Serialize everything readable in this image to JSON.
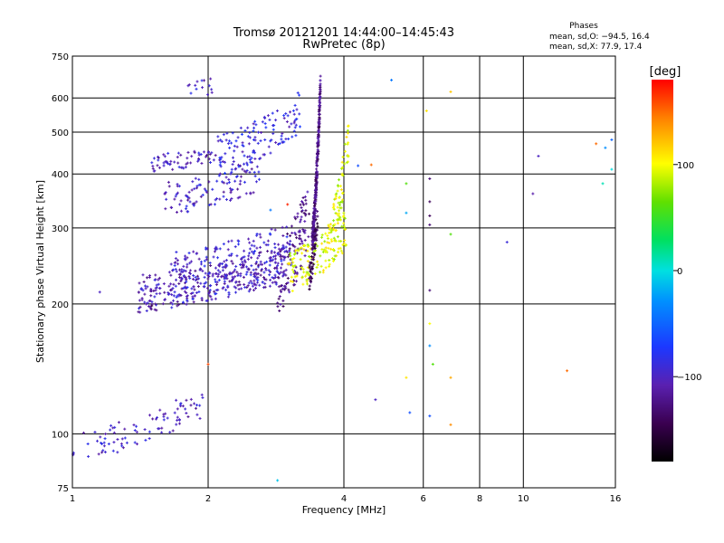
{
  "chart_data": {
    "type": "scatter",
    "title": "Tromsø 20121201 14:44:00–14:45:43",
    "subtitle": "RwPretec (8p)",
    "stats": {
      "heading": "Phases",
      "line_o": "mean, sd,O: −94.5, 16.4",
      "line_x": "mean, sd,X:  77.9, 17.4"
    },
    "xlabel": "Frequency [MHz]",
    "ylabel": "Stationary phase Virtual Height [km]",
    "x_scale": "log",
    "y_scale": "log",
    "xlim": [
      1,
      16
    ],
    "ylim": [
      75,
      750
    ],
    "xticks": [
      1,
      2,
      4,
      6,
      8,
      10,
      16
    ],
    "xtick_labels": [
      "1",
      "2",
      "4",
      "6",
      "8",
      "10",
      "16"
    ],
    "yticks": [
      75,
      100,
      200,
      300,
      400,
      500,
      600,
      750
    ],
    "ytick_labels": [
      "75",
      "100",
      "200",
      "300",
      "400",
      "500",
      "600",
      "750"
    ],
    "grid": true,
    "colorbar": {
      "label": "[deg]",
      "range": [
        -180,
        180
      ],
      "ticks": [
        100,
        0,
        -100
      ],
      "tick_labels": [
        "100",
        "0",
        "−100"
      ]
    },
    "traces": [
      {
        "x0": 1.0,
        "x1": 1.95,
        "h0": 93,
        "h1": 118,
        "phase": -100,
        "count": 90,
        "spread": 0.035
      },
      {
        "x0": 1.4,
        "x1": 3.0,
        "h0": 212,
        "h1": 250,
        "phase": -105,
        "count": 320,
        "spread": 0.045
      },
      {
        "x0": 1.65,
        "x1": 3.05,
        "h0": 230,
        "h1": 270,
        "phase": -95,
        "count": 200,
        "spread": 0.06
      },
      {
        "x0": 2.85,
        "x1": 3.35,
        "h0": 230,
        "h1": 320,
        "phase": -120,
        "count": 120,
        "spread": 0.08
      },
      {
        "x0": 3.0,
        "x1": 4.05,
        "h0": 235,
        "h1": 300,
        "phase": 95,
        "count": 160,
        "spread": 0.05
      },
      {
        "x0": 3.75,
        "x1": 4.1,
        "h0": 300,
        "h1": 480,
        "phase": 95,
        "count": 60,
        "spread": 0.05
      },
      {
        "x0": 3.4,
        "x1": 3.55,
        "h0": 280,
        "h1": 650,
        "phase": -125,
        "count": 300,
        "spread": 0.03
      },
      {
        "x0": 3.35,
        "x1": 3.5,
        "h0": 230,
        "h1": 320,
        "phase": -140,
        "count": 60,
        "spread": 0.03
      },
      {
        "x0": 1.6,
        "x1": 2.6,
        "h0": 350,
        "h1": 400,
        "phase": -100,
        "count": 110,
        "spread": 0.04
      },
      {
        "x0": 1.5,
        "x1": 2.1,
        "h0": 425,
        "h1": 440,
        "phase": -100,
        "count": 60,
        "spread": 0.02
      },
      {
        "x0": 2.1,
        "x1": 3.2,
        "h0": 440,
        "h1": 560,
        "phase": -90,
        "count": 130,
        "spread": 0.05
      },
      {
        "x0": 1.75,
        "x1": 2.1,
        "h0": 620,
        "h1": 645,
        "phase": -100,
        "count": 14,
        "spread": 0.02
      }
    ],
    "scattered_points": [
      {
        "x": 1.15,
        "h": 213,
        "phase": -100
      },
      {
        "x": 1.5,
        "h": 198,
        "phase": -150
      },
      {
        "x": 2.0,
        "h": 145,
        "phase": 160
      },
      {
        "x": 2.85,
        "h": 78,
        "phase": -10
      },
      {
        "x": 2.75,
        "h": 330,
        "phase": -40
      },
      {
        "x": 3.0,
        "h": 340,
        "phase": 170
      },
      {
        "x": 4.3,
        "h": 418,
        "phase": -60
      },
      {
        "x": 4.6,
        "h": 420,
        "phase": 150
      },
      {
        "x": 4.7,
        "h": 120,
        "phase": -100
      },
      {
        "x": 5.1,
        "h": 660,
        "phase": -40
      },
      {
        "x": 5.5,
        "h": 380,
        "phase": 60
      },
      {
        "x": 5.5,
        "h": 325,
        "phase": -20
      },
      {
        "x": 5.5,
        "h": 135,
        "phase": 110
      },
      {
        "x": 5.6,
        "h": 112,
        "phase": -60
      },
      {
        "x": 6.1,
        "h": 560,
        "phase": 110
      },
      {
        "x": 6.2,
        "h": 390,
        "phase": -130
      },
      {
        "x": 6.2,
        "h": 345,
        "phase": -140
      },
      {
        "x": 6.2,
        "h": 320,
        "phase": -140
      },
      {
        "x": 6.2,
        "h": 305,
        "phase": -130
      },
      {
        "x": 6.2,
        "h": 215,
        "phase": -130
      },
      {
        "x": 6.2,
        "h": 180,
        "phase": 100
      },
      {
        "x": 6.2,
        "h": 160,
        "phase": -30
      },
      {
        "x": 6.2,
        "h": 110,
        "phase": -60
      },
      {
        "x": 6.3,
        "h": 145,
        "phase": 60
      },
      {
        "x": 6.9,
        "h": 620,
        "phase": 120
      },
      {
        "x": 6.9,
        "h": 290,
        "phase": 60
      },
      {
        "x": 6.9,
        "h": 135,
        "phase": 130
      },
      {
        "x": 6.9,
        "h": 105,
        "phase": 140
      },
      {
        "x": 9.2,
        "h": 278,
        "phase": -90
      },
      {
        "x": 10.5,
        "h": 360,
        "phase": -110
      },
      {
        "x": 10.8,
        "h": 440,
        "phase": -100
      },
      {
        "x": 12.5,
        "h": 140,
        "phase": 150
      },
      {
        "x": 14.5,
        "h": 470,
        "phase": 150
      },
      {
        "x": 15.0,
        "h": 380,
        "phase": 10
      },
      {
        "x": 15.2,
        "h": 460,
        "phase": -30
      },
      {
        "x": 15.7,
        "h": 480,
        "phase": -50
      },
      {
        "x": 15.7,
        "h": 410,
        "phase": 0
      }
    ]
  }
}
